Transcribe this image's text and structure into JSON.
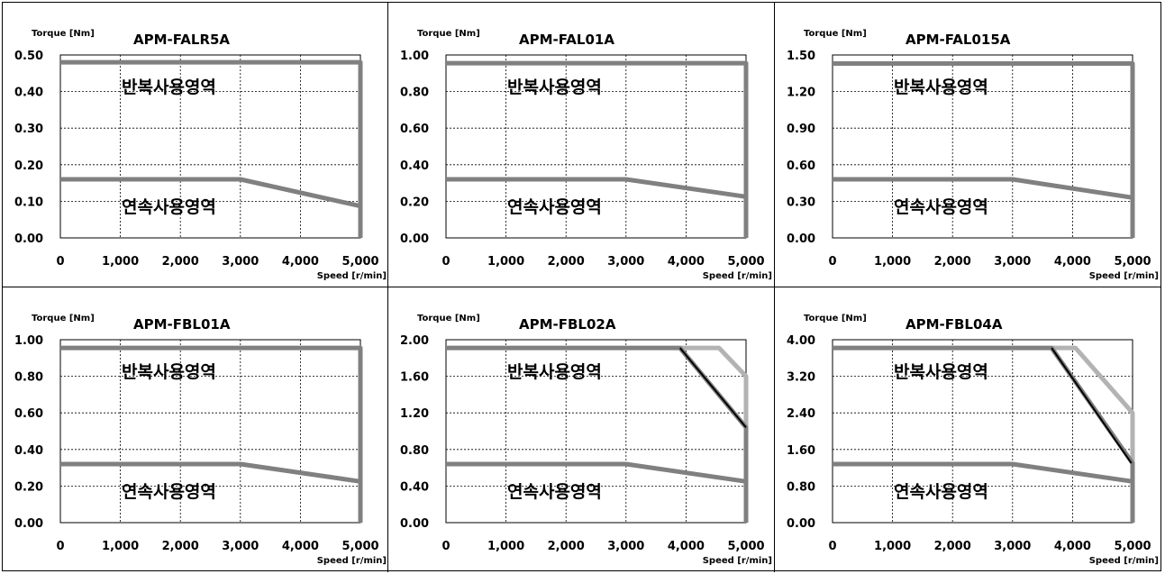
{
  "colors": {
    "envelope": "#808080",
    "envelope_light": "#b3b3b3",
    "limit_line": "#000000",
    "grid": "#000000"
  },
  "common": {
    "y_axis_label": "Torque [Nm]",
    "x_axis_label": "Speed [r/min]",
    "repeat_region_label": "반복사용영역",
    "continuous_region_label": "연속사용영역"
  },
  "chart_data": [
    {
      "type": "line",
      "title": "APM-FALR5A",
      "xlabel": "Speed [r/min]",
      "ylabel": "Torque [Nm]",
      "xlim": [
        0,
        5000
      ],
      "ylim": [
        0,
        0.5
      ],
      "x_ticks": [
        "0",
        "1,000",
        "2,000",
        "3,000",
        "4,000",
        "5,000"
      ],
      "y_ticks": [
        "0.00",
        "0.10",
        "0.20",
        "0.30",
        "0.40",
        "0.50"
      ],
      "grid": true,
      "series": [
        {
          "role": "repeat",
          "points": [
            [
              0,
              0.48
            ],
            [
              5000,
              0.48
            ],
            [
              5000,
              0
            ]
          ]
        },
        {
          "role": "continuous",
          "points": [
            [
              0,
              0.16
            ],
            [
              3000,
              0.16
            ],
            [
              5000,
              0.087
            ]
          ]
        }
      ]
    },
    {
      "type": "line",
      "title": "APM-FAL01A",
      "xlabel": "Speed [r/min]",
      "ylabel": "Torque [Nm]",
      "xlim": [
        0,
        5000
      ],
      "ylim": [
        0,
        1.0
      ],
      "x_ticks": [
        "0",
        "1,000",
        "2,000",
        "3,000",
        "4,000",
        "5,000"
      ],
      "y_ticks": [
        "0.00",
        "0.20",
        "0.40",
        "0.60",
        "0.80",
        "1.00"
      ],
      "grid": true,
      "series": [
        {
          "role": "repeat",
          "points": [
            [
              0,
              0.955
            ],
            [
              5000,
              0.955
            ],
            [
              5000,
              0
            ]
          ]
        },
        {
          "role": "continuous",
          "points": [
            [
              0,
              0.32
            ],
            [
              3000,
              0.32
            ],
            [
              5000,
              0.225
            ]
          ]
        }
      ]
    },
    {
      "type": "line",
      "title": "APM-FAL015A",
      "xlabel": "Speed [r/min]",
      "ylabel": "Torque [Nm]",
      "xlim": [
        0,
        5000
      ],
      "ylim": [
        0,
        1.5
      ],
      "x_ticks": [
        "0",
        "1,000",
        "2,000",
        "3,000",
        "4,000",
        "5,000"
      ],
      "y_ticks": [
        "0.00",
        "0.30",
        "0.60",
        "0.90",
        "1.20",
        "1.50"
      ],
      "grid": true,
      "series": [
        {
          "role": "repeat",
          "points": [
            [
              0,
              1.43
            ],
            [
              5000,
              1.43
            ],
            [
              5000,
              0
            ]
          ]
        },
        {
          "role": "continuous",
          "points": [
            [
              0,
              0.48
            ],
            [
              3000,
              0.48
            ],
            [
              5000,
              0.33
            ]
          ]
        }
      ]
    },
    {
      "type": "line",
      "title": "APM-FBL01A",
      "xlabel": "Speed [r/min]",
      "ylabel": "Torque [Nm]",
      "xlim": [
        0,
        5000
      ],
      "ylim": [
        0,
        1.0
      ],
      "x_ticks": [
        "0",
        "1,000",
        "2,000",
        "3,000",
        "4,000",
        "5,000"
      ],
      "y_ticks": [
        "0.00",
        "0.20",
        "0.40",
        "0.60",
        "0.80",
        "1.00"
      ],
      "grid": true,
      "series": [
        {
          "role": "repeat",
          "points": [
            [
              0,
              0.955
            ],
            [
              5000,
              0.955
            ],
            [
              5000,
              0
            ]
          ]
        },
        {
          "role": "continuous",
          "points": [
            [
              0,
              0.32
            ],
            [
              3000,
              0.32
            ],
            [
              5000,
              0.225
            ]
          ]
        }
      ]
    },
    {
      "type": "line",
      "title": "APM-FBL02A",
      "xlabel": "Speed [r/min]",
      "ylabel": "Torque [Nm]",
      "xlim": [
        0,
        5000
      ],
      "ylim": [
        0,
        2.0
      ],
      "x_ticks": [
        "0",
        "1,000",
        "2,000",
        "3,000",
        "4,000",
        "5,000"
      ],
      "y_ticks": [
        "0.00",
        "0.40",
        "0.80",
        "1.20",
        "1.60",
        "2.00"
      ],
      "grid": true,
      "series": [
        {
          "role": "repeat",
          "points": [
            [
              0,
              1.91
            ],
            [
              3900,
              1.91
            ],
            [
              5000,
              1.04
            ],
            [
              5000,
              0
            ]
          ]
        },
        {
          "role": "repeat_alt",
          "points": [
            [
              3900,
              1.91
            ],
            [
              4550,
              1.91
            ],
            [
              5000,
              1.6
            ],
            [
              5000,
              0
            ]
          ]
        },
        {
          "role": "limit",
          "points": [
            [
              3900,
              1.91
            ],
            [
              5000,
              1.04
            ]
          ]
        },
        {
          "role": "continuous",
          "points": [
            [
              0,
              0.64
            ],
            [
              3000,
              0.64
            ],
            [
              5000,
              0.45
            ]
          ]
        }
      ]
    },
    {
      "type": "line",
      "title": "APM-FBL04A",
      "xlabel": "Speed [r/min]",
      "ylabel": "Torque [Nm]",
      "xlim": [
        0,
        5000
      ],
      "ylim": [
        0,
        4.0
      ],
      "x_ticks": [
        "0",
        "1,000",
        "2,000",
        "3,000",
        "4,000",
        "5,000"
      ],
      "y_ticks": [
        "0.00",
        "0.80",
        "1.60",
        "2.40",
        "3.20",
        "4.00"
      ],
      "grid": true,
      "series": [
        {
          "role": "repeat",
          "points": [
            [
              0,
              3.82
            ],
            [
              3650,
              3.82
            ],
            [
              5000,
              1.3
            ],
            [
              5000,
              0
            ]
          ]
        },
        {
          "role": "repeat_alt",
          "points": [
            [
              3650,
              3.82
            ],
            [
              4050,
              3.82
            ],
            [
              5000,
              2.4
            ],
            [
              5000,
              0
            ]
          ]
        },
        {
          "role": "limit",
          "points": [
            [
              3650,
              3.82
            ],
            [
              4980,
              1.3
            ]
          ]
        },
        {
          "role": "continuous",
          "points": [
            [
              0,
              1.28
            ],
            [
              3000,
              1.28
            ],
            [
              5000,
              0.9
            ]
          ]
        }
      ]
    }
  ]
}
